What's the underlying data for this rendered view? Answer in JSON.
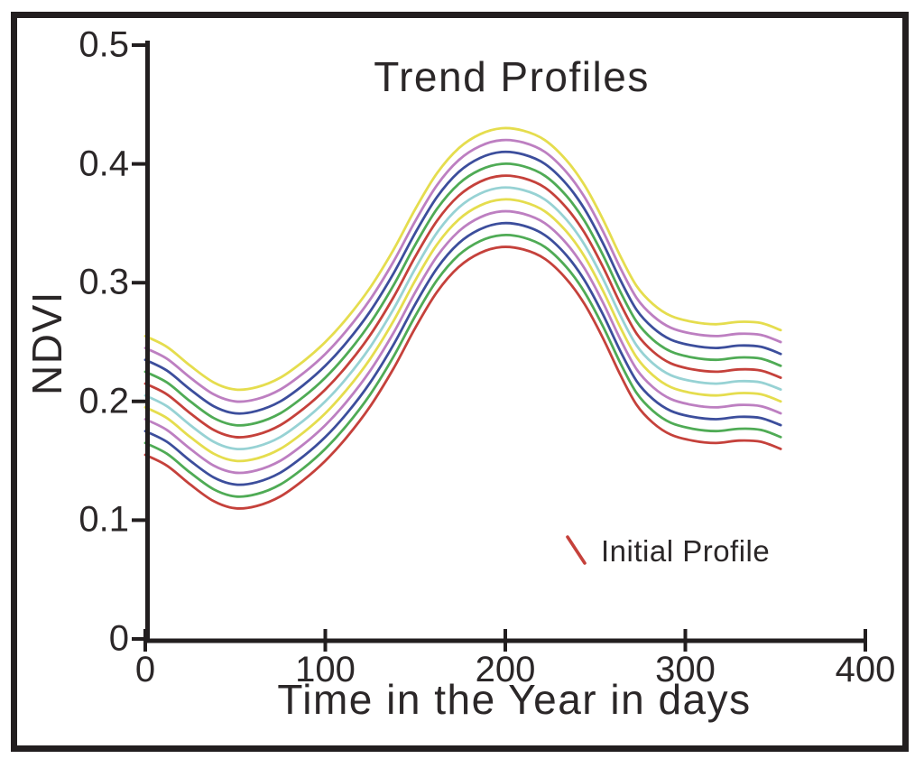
{
  "window": {
    "background_color": "#ffffff",
    "frame_color": "#221e1f",
    "text_color": "#2b2728"
  },
  "chart_data": {
    "type": "line",
    "title": "Trend Profiles",
    "xlabel": "Time in the Year in days",
    "ylabel": "NDVI",
    "xlim": [
      0,
      400
    ],
    "ylim": [
      0,
      0.5
    ],
    "xticks": [
      "0",
      "100",
      "200",
      "300",
      "400"
    ],
    "xtick_values": [
      0,
      100,
      200,
      300,
      400
    ],
    "yticks": [
      "0",
      "0.1",
      "0.2",
      "0.3",
      "0.4",
      "0.5"
    ],
    "ytick_values": [
      0,
      0.1,
      0.2,
      0.3,
      0.4,
      0.5
    ],
    "grid": false,
    "legend": {
      "label": "Initial Profile",
      "position": "lower-right",
      "swatch_shape": "diagonal-line",
      "swatch_color": "#c5413b"
    },
    "x_days": [
      0,
      12,
      25,
      38,
      50,
      62,
      75,
      88,
      100,
      112,
      125,
      138,
      150,
      162,
      174,
      186,
      198,
      210,
      222,
      234,
      244,
      254,
      264,
      273,
      282,
      292,
      304,
      317,
      330,
      342,
      353
    ],
    "initial_profile": {
      "name": "Initial Profile",
      "color": "#c5413b",
      "ndvi_values": [
        0.155,
        0.146,
        0.13,
        0.116,
        0.11,
        0.112,
        0.12,
        0.134,
        0.15,
        0.17,
        0.196,
        0.228,
        0.262,
        0.292,
        0.313,
        0.325,
        0.33,
        0.328,
        0.32,
        0.303,
        0.282,
        0.254,
        0.222,
        0.197,
        0.182,
        0.172,
        0.167,
        0.165,
        0.167,
        0.166,
        0.16
      ]
    },
    "trend_profiles": {
      "count": 11,
      "note": "11 stacked profiles; each is the initial profile shifted up by its NDVI offset",
      "offsets_ndvi": [
        0,
        0.01,
        0.02,
        0.03,
        0.04,
        0.05,
        0.06,
        0.07,
        0.08,
        0.09,
        0.1
      ],
      "color_cycle_bottom_to_top": [
        "#c5413b",
        "#4fab55",
        "#3c4e9c",
        "#bd7fc1",
        "#e5dd4e",
        "#97d2d4"
      ]
    }
  }
}
